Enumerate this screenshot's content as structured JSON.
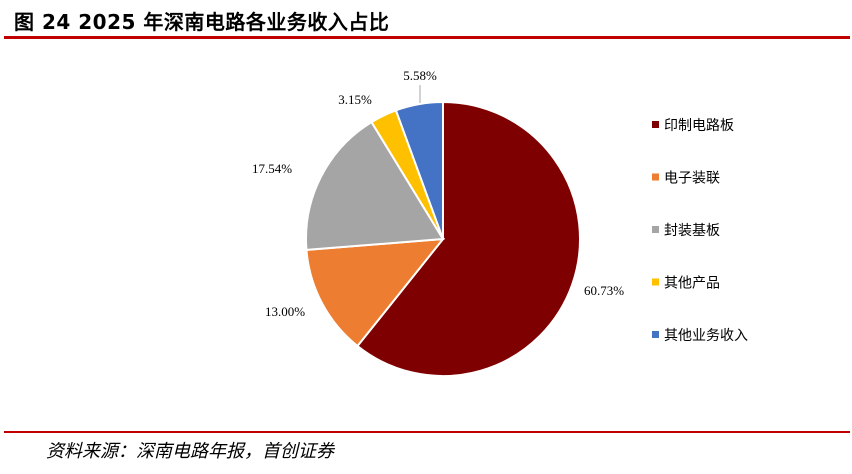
{
  "figure": {
    "title": "图 24 2025 年深南电路各业务收入占比",
    "source": "资料来源：深南电路年报，首创证券"
  },
  "chart_data": {
    "type": "pie",
    "title": "",
    "categories": [
      "印制电路板",
      "电子装联",
      "封装基板",
      "其他产品",
      "其他业务收入"
    ],
    "values": [
      60.73,
      13.0,
      17.54,
      3.15,
      5.58
    ],
    "labels": [
      "60.73%",
      "13.00%",
      "17.54%",
      "3.15%",
      "5.58%"
    ],
    "colors": [
      "#7f0000",
      "#ed7d31",
      "#a5a5a5",
      "#ffc000",
      "#4472c4"
    ],
    "start_angle": "12 o'clock",
    "direction": "clockwise",
    "legend_position": "right"
  }
}
